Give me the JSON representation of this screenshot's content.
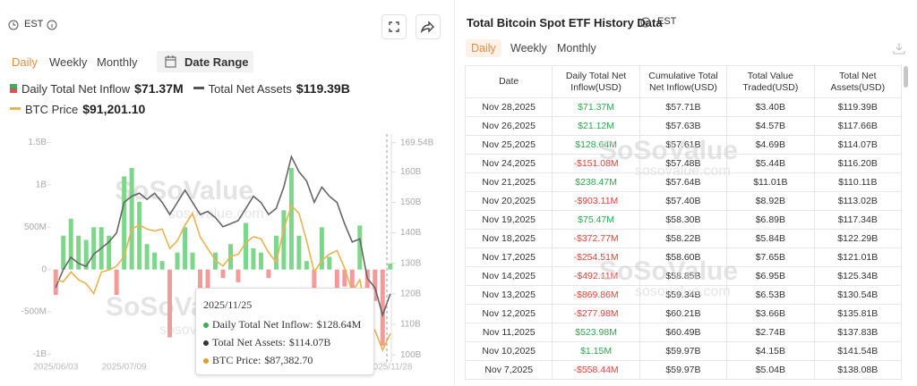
{
  "left_panel": {
    "timezone": "EST",
    "tabs": [
      "Daily",
      "Weekly",
      "Monthly"
    ],
    "date_range": "Date Range",
    "legend_values": [
      "$71.37M",
      "$119.39B",
      "$91,201.10"
    ],
    "tooltip": {
      "date": "2025/11/25",
      "items": [
        {
          "label": "Daily Total Net Inflow:",
          "value": "$128.64M"
        },
        {
          "label": "Total Net Assets:",
          "value": "$114.07B"
        },
        {
          "label": "BTC Price:",
          "value": "$87,382.70"
        }
      ]
    }
  },
  "watermark": {
    "brand": "SoSoValue",
    "url": "sosovalue.com"
  },
  "chart_data": {
    "type": "bar-line",
    "categories": [
      "2025/06/03",
      null,
      null,
      null,
      null,
      null,
      null,
      null,
      null,
      "2025/07/09",
      null,
      null,
      null,
      null,
      null,
      null,
      null,
      null,
      null,
      null,
      null,
      null,
      null,
      null,
      null,
      null,
      null,
      null,
      null,
      null,
      null,
      null,
      null,
      null,
      null,
      null,
      null,
      null,
      null,
      null,
      null,
      null,
      null,
      null,
      "2025/11/28"
    ],
    "series": [
      {
        "name": "Daily Total Net Inflow",
        "color": "#7dd68a",
        "negative_color": "#f29b9b",
        "values": [
          -0.3,
          0.4,
          0.6,
          0.4,
          0.35,
          0.5,
          0.5,
          0.4,
          -0.3,
          1.1,
          1.2,
          0.8,
          0.3,
          0.2,
          0.1,
          -0.8,
          0.2,
          0.5,
          0.2,
          -0.5,
          -0.3,
          0.2,
          -0.1,
          0.3,
          -0.15,
          0.55,
          0.25,
          0.2,
          -0.1,
          0.4,
          0.7,
          1.2,
          0.4,
          0.1,
          -0.5,
          0.5,
          0.15,
          -0.4,
          -0.2,
          -0.6,
          0.52,
          -0.87,
          -0.37,
          -0.9,
          0.07
        ]
      },
      {
        "name": "Total Net Assets",
        "color": "#666666",
        "axis": "y2",
        "values": [
          122,
          128,
          132,
          130,
          129,
          133,
          135,
          137,
          140,
          150,
          152,
          153,
          151,
          153,
          150,
          146,
          150,
          154,
          150,
          146,
          147,
          145,
          142,
          143,
          144,
          148,
          152,
          150,
          146,
          148,
          155,
          165,
          160,
          157,
          150,
          155,
          152,
          150,
          143,
          137,
          138,
          125,
          122,
          113,
          120
        ]
      },
      {
        "name": "BTC Price",
        "color": "#e8b450",
        "axis": "y3",
        "values": [
          105000,
          104500,
          107000,
          105000,
          104000,
          101500,
          107000,
          107500,
          108500,
          111000,
          118000,
          119000,
          118000,
          117500,
          118000,
          113000,
          115000,
          119000,
          122000,
          116000,
          113000,
          110000,
          108500,
          111000,
          111500,
          114500,
          116000,
          115500,
          112000,
          109500,
          118000,
          124000,
          122000,
          115000,
          107000,
          110000,
          111500,
          112500,
          108000,
          102000,
          105000,
          95000,
          92000,
          87000,
          91200
        ]
      }
    ],
    "ylim": [
      -1.09,
      1.6
    ],
    "yticks": [
      {
        "value": -1,
        "label": "-1B"
      },
      {
        "value": -0.5,
        "label": "-500M"
      },
      0,
      {
        "value": 0.5,
        "label": "500M"
      },
      {
        "value": 1,
        "label": "1B"
      },
      {
        "value": 1.5,
        "label": "1.5B"
      }
    ],
    "y2lim": [
      97.7,
      172.4
    ],
    "y2ticks": [
      {
        "value": 100,
        "label": "100B"
      },
      {
        "value": 110,
        "label": "110B"
      },
      {
        "value": 120,
        "label": "120B"
      },
      {
        "value": 130,
        "label": "130B"
      },
      {
        "value": 140,
        "label": "140B"
      },
      {
        "value": 150,
        "label": "150B"
      },
      {
        "value": 160,
        "label": "160B"
      },
      {
        "value": 169.54,
        "label": "169.54B"
      }
    ],
    "y3lim": [
      84000,
      142300
    ]
  },
  "right_panel": {
    "title": "Total Bitcoin Spot ETF History Data",
    "timezone": "EST",
    "tabs": [
      "Daily",
      "Weekly",
      "Monthly"
    ]
  },
  "table": {
    "headers": [
      "Date",
      "Daily Total Net Inflow(USD)",
      "Cumulative Total Net Inflow(USD)",
      "Total Value Traded(USD)",
      "Total Net Assets(USD)"
    ],
    "rows": [
      [
        "Nov 28,2025",
        "$71.37M",
        "$57.71B",
        "$3.40B",
        "$119.39B"
      ],
      [
        "Nov 26,2025",
        "$21.12M",
        "$57.63B",
        "$4.57B",
        "$117.66B"
      ],
      [
        "Nov 25,2025",
        "$128.64M",
        "$57.61B",
        "$4.69B",
        "$114.07B"
      ],
      [
        "Nov 24,2025",
        "-$151.08M",
        "$57.48B",
        "$5.44B",
        "$116.20B"
      ],
      [
        "Nov 21,2025",
        "$238.47M",
        "$57.64B",
        "$11.01B",
        "$110.11B"
      ],
      [
        "Nov 20,2025",
        "-$903.11M",
        "$57.40B",
        "$8.92B",
        "$113.02B"
      ],
      [
        "Nov 19,2025",
        "$75.47M",
        "$58.30B",
        "$6.89B",
        "$117.34B"
      ],
      [
        "Nov 18,2025",
        "-$372.77M",
        "$58.22B",
        "$5.84B",
        "$122.29B"
      ],
      [
        "Nov 17,2025",
        "-$254.51M",
        "$58.60B",
        "$7.65B",
        "$121.01B"
      ],
      [
        "Nov 14,2025",
        "-$492.11M",
        "$58.85B",
        "$6.95B",
        "$125.34B"
      ],
      [
        "Nov 13,2025",
        "-$869.86M",
        "$59.34B",
        "$6.53B",
        "$130.54B"
      ],
      [
        "Nov 12,2025",
        "-$277.98M",
        "$60.21B",
        "$3.66B",
        "$135.81B"
      ],
      [
        "Nov 11,2025",
        "$523.98M",
        "$60.49B",
        "$2.74B",
        "$137.83B"
      ],
      [
        "Nov 10,2025",
        "$1.15M",
        "$59.97B",
        "$4.15B",
        "$141.54B"
      ],
      [
        "Nov 7,2025",
        "-$558.44M",
        "$59.97B",
        "$5.04B",
        "$138.08B"
      ]
    ]
  }
}
